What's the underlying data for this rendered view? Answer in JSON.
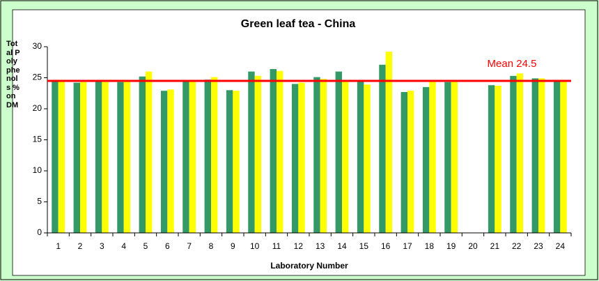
{
  "chart_data": {
    "type": "bar",
    "title": "Green leaf tea - China",
    "x_label": "Laboratory Number",
    "y_label": "Total Polyphenols % on DM",
    "categories": [
      "1",
      "2",
      "3",
      "4",
      "5",
      "6",
      "7",
      "8",
      "9",
      "10",
      "11",
      "12",
      "13",
      "14",
      "15",
      "16",
      "17",
      "18",
      "19",
      "20",
      "21",
      "22",
      "23",
      "24"
    ],
    "series": [
      {
        "color": "#339966",
        "values": [
          24.4,
          24.2,
          24.6,
          24.3,
          25.2,
          22.9,
          24.5,
          24.7,
          23.0,
          26.0,
          26.4,
          24.0,
          25.1,
          26.0,
          24.4,
          27.1,
          22.7,
          23.5,
          24.3,
          null,
          23.8,
          25.3,
          24.9,
          24.5
        ]
      },
      {
        "color": "#ffff00",
        "values": [
          24.4,
          24.3,
          24.3,
          24.4,
          26.0,
          23.1,
          24.6,
          25.1,
          22.9,
          25.3,
          26.1,
          24.2,
          24.8,
          24.6,
          23.9,
          29.2,
          22.9,
          24.6,
          24.6,
          null,
          23.7,
          25.7,
          24.9,
          24.4
        ]
      }
    ],
    "mean": {
      "label": "Mean 24.5",
      "value": 24.5,
      "color": "#ff0000"
    },
    "ylim": [
      0,
      30
    ],
    "yticks": [
      0,
      5,
      10,
      15,
      20,
      25,
      30
    ],
    "grid": false
  }
}
